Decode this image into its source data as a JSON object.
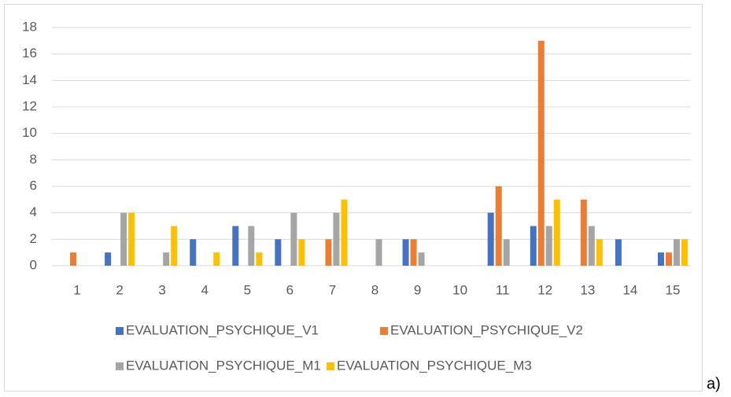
{
  "chart_data": {
    "type": "bar",
    "categories": [
      "1",
      "2",
      "3",
      "4",
      "5",
      "6",
      "7",
      "8",
      "9",
      "10",
      "11",
      "12",
      "13",
      "14",
      "15"
    ],
    "series": [
      {
        "name": "EVALUATION_PSYCHIQUE_V1",
        "color": "#4472c4",
        "values": [
          0,
          1,
          0,
          2,
          3,
          2,
          0,
          0,
          2,
          0,
          4,
          3,
          0,
          2,
          1
        ]
      },
      {
        "name": "EVALUATION_PSYCHIQUE_V2",
        "color": "#ed7d31",
        "values": [
          1,
          0,
          0,
          0,
          0,
          0,
          2,
          0,
          2,
          0,
          6,
          17,
          5,
          0,
          1
        ]
      },
      {
        "name": "EVALUATION_PSYCHIQUE_M1",
        "color": "#a5a5a5",
        "values": [
          0,
          4,
          1,
          0,
          3,
          4,
          4,
          2,
          1,
          0,
          2,
          3,
          3,
          0,
          2
        ]
      },
      {
        "name": "EVALUATION_PSYCHIQUE_M3",
        "color": "#ffc000",
        "values": [
          0,
          4,
          3,
          1,
          1,
          2,
          5,
          0,
          0,
          0,
          0,
          5,
          2,
          0,
          2
        ]
      }
    ],
    "ylim": [
      0,
      18
    ],
    "yticks": [
      0,
      2,
      4,
      6,
      8,
      10,
      12,
      14,
      16,
      18
    ],
    "grid": true,
    "annotation": "a)"
  }
}
